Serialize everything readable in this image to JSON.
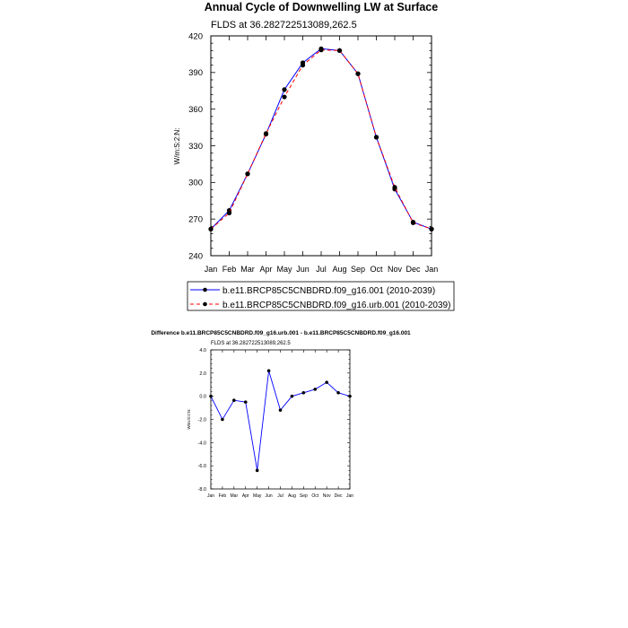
{
  "chart_data": [
    {
      "type": "line",
      "title": "Annual Cycle of Downwelling LW at Surface",
      "subtitle": "FLDS at 36.282722513089,262.5",
      "xlabel": "",
      "ylabel": "W/m:S:2:N:",
      "categories": [
        "Jan",
        "Feb",
        "Mar",
        "Apr",
        "May",
        "Jun",
        "Jul",
        "Aug",
        "Sep",
        "Oct",
        "Nov",
        "Dec",
        "Jan"
      ],
      "ylim": [
        240,
        420
      ],
      "yticks": [
        "240",
        "270",
        "300",
        "330",
        "360",
        "390",
        "420"
      ],
      "legend_position": "bottom",
      "grid": false,
      "series": [
        {
          "name": "b.e11.BRCP85C5CNBDRD.f09_g16.001 (2010-2039)",
          "color": "#0000ff",
          "dash": "solid",
          "values": [
            261.8,
            277,
            307,
            339.5,
            376,
            398,
            409.5,
            408,
            389,
            337,
            294.5,
            267.5,
            261.8
          ]
        },
        {
          "name": "b.e11.BRCP85C5CNBDRD.f09_g16.urb.001 (2010-2039)",
          "color": "#ff0000",
          "dash": "dashed",
          "values": [
            261.8,
            275,
            307,
            340,
            370,
            396,
            408.5,
            408,
            389,
            337,
            296,
            267,
            261.8
          ]
        }
      ]
    },
    {
      "type": "line",
      "title": "Difference b.e11.BRCP85C5CNBDRD.f09_g16.urb.001 - b.e11.BRCP85C5CNBDRD.f09_g16.001",
      "subtitle": "FLDS at 36.282722513089,262.5",
      "xlabel": "",
      "ylabel": "W/m:S:2:N:",
      "categories": [
        "Jan",
        "Feb",
        "Mar",
        "Apr",
        "May",
        "Jun",
        "Jul",
        "Aug",
        "Sep",
        "Oct",
        "Nov",
        "Dec",
        "Jan"
      ],
      "ylim": [
        -8,
        4
      ],
      "yticks": [
        "-8.0",
        "-6.0",
        "-4.0",
        "-2.0",
        "0.0",
        "2.0",
        "4.0"
      ],
      "grid": false,
      "series": [
        {
          "color": "#0000ff",
          "dash": "solid",
          "values": [
            0.0,
            -2.0,
            -0.35,
            -0.5,
            -6.4,
            2.2,
            -1.2,
            0.0,
            0.3,
            0.6,
            1.2,
            0.3,
            0.0
          ]
        }
      ]
    }
  ]
}
